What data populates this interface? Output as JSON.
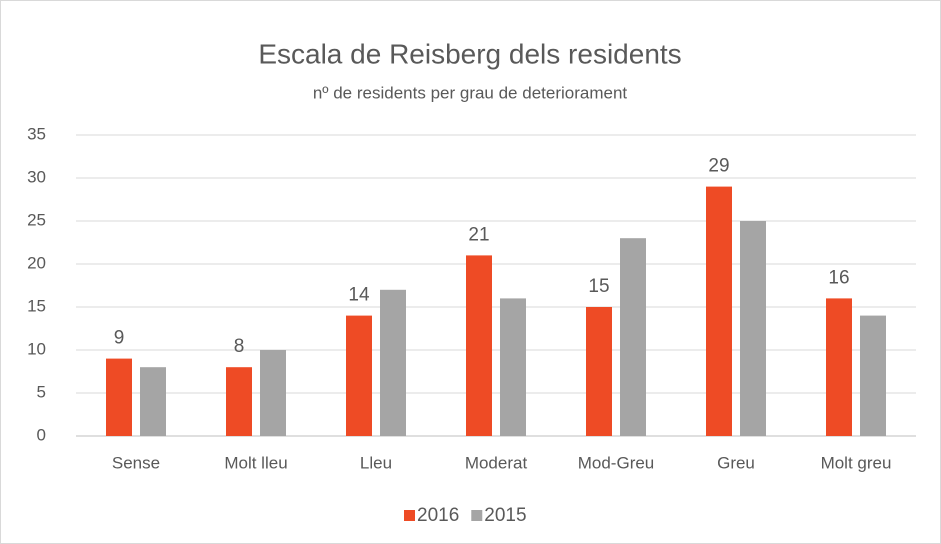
{
  "chart_data": {
    "type": "bar",
    "title": "Escala de Reisberg dels residents",
    "subtitle": "nº de residents per grau de deteriorament",
    "categories": [
      "Sense",
      "Molt lleu",
      "Lleu",
      "Moderat",
      "Mod-Greu",
      "Greu",
      "Molt greu"
    ],
    "series": [
      {
        "name": "2016",
        "color": "#ee4b25",
        "values": [
          9,
          8,
          14,
          21,
          15,
          29,
          16
        ],
        "show_labels": true
      },
      {
        "name": "2015",
        "color": "#a5a5a5",
        "values": [
          8,
          10,
          17,
          16,
          23,
          25,
          14
        ],
        "show_labels": false
      }
    ],
    "ylim": [
      0,
      35
    ],
    "yticks": [
      0,
      5,
      10,
      15,
      20,
      25,
      30,
      35
    ],
    "grid": true,
    "legend": "bottom"
  }
}
